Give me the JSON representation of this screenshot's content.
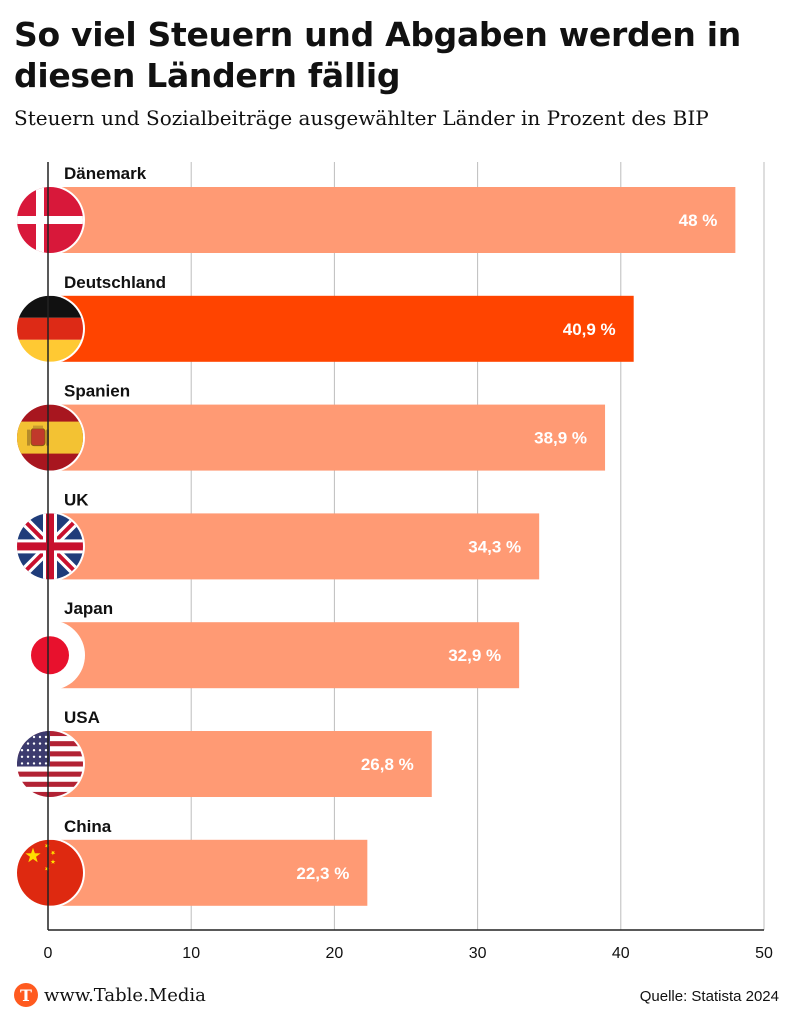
{
  "chart_data": {
    "type": "bar",
    "orientation": "horizontal",
    "title": "So viel Steuern und Abgaben werden in diesen Ländern fällig",
    "subtitle": "Steuern und Sozialbeiträge ausgewählter Länder in Prozent des BIP",
    "categories": [
      "Dänemark",
      "Deutschland",
      "Spanien",
      "UK",
      "Japan",
      "USA",
      "China"
    ],
    "values": [
      48,
      40.9,
      38.9,
      34.3,
      32.9,
      26.8,
      22.3
    ],
    "value_labels": [
      "48 %",
      "40,9 %",
      "38,9 %",
      "34,3 %",
      "32,9 %",
      "26,8 %",
      "22,3 %"
    ],
    "highlight": "Deutschland",
    "xlim": [
      0,
      50
    ],
    "xticks": [
      0,
      10,
      20,
      30,
      40,
      50
    ],
    "grid": true,
    "colors": {
      "bar": "#ff9a74",
      "highlight": "#ff4400"
    },
    "flags": [
      "denmark-flag",
      "germany-flag",
      "spain-flag",
      "uk-flag",
      "japan-flag",
      "usa-flag",
      "china-flag"
    ]
  },
  "footer": {
    "logo_letter": "T",
    "site": "www.Table.Media",
    "source": "Quelle: Statista 2024"
  }
}
